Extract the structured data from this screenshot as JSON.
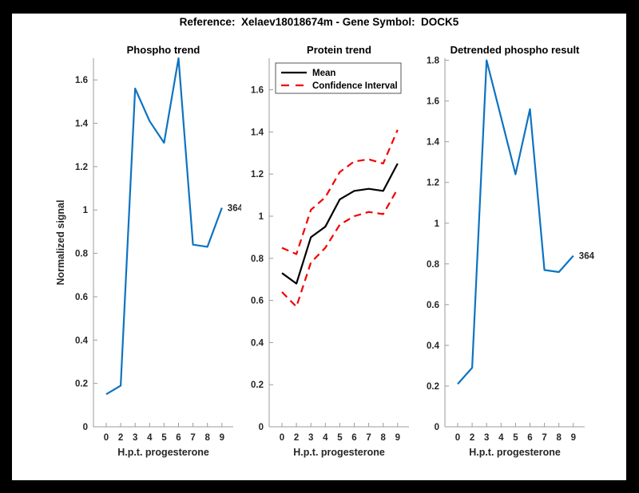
{
  "figure": {
    "title": "Reference:  Xelaev18018674m - Gene Symbol:  DOCK5",
    "background_color": "#000000",
    "canvas_color": "#ffffff",
    "axis_color": "#9b9b9b",
    "text_color": "#262626"
  },
  "chart_data": [
    {
      "type": "line",
      "title": "Phospho trend",
      "xlabel": "H.p.t. progesterone",
      "ylabel": "Normalized signal",
      "x_tick_labels": [
        "0",
        "2",
        "3",
        "4",
        "5",
        "6",
        "7",
        "8",
        "9"
      ],
      "y_tick_labels": [
        "0",
        "0.2",
        "0.4",
        "0.6",
        "0.8",
        "1",
        "1.2",
        "1.4",
        "1.6"
      ],
      "ylim": [
        0,
        1.7
      ],
      "grid": false,
      "series": [
        {
          "name": "phospho-signal",
          "color": "#0d73c2",
          "dash": false,
          "values": [
            0.15,
            0.19,
            1.56,
            1.41,
            1.31,
            1.7,
            0.84,
            0.83,
            1.01
          ]
        }
      ],
      "annotation": "364"
    },
    {
      "type": "line",
      "title": "Protein trend",
      "xlabel": "H.p.t. progesterone",
      "ylabel": "",
      "x_tick_labels": [
        "0",
        "2",
        "3",
        "4",
        "5",
        "6",
        "7",
        "8",
        "9"
      ],
      "y_tick_labels": [
        "0",
        "0.2",
        "0.4",
        "0.6",
        "0.8",
        "1",
        "1.2",
        "1.4",
        "1.6"
      ],
      "ylim": [
        0,
        1.75
      ],
      "grid": false,
      "legend": {
        "position": "top-left",
        "entries": [
          {
            "label": "Mean",
            "color": "#000000",
            "dash": false
          },
          {
            "label": "Confidence Interval",
            "color": "#f20000",
            "dash": true
          }
        ]
      },
      "series": [
        {
          "name": "mean",
          "color": "#000000",
          "dash": false,
          "values": [
            0.73,
            0.68,
            0.9,
            0.95,
            1.08,
            1.12,
            1.13,
            1.12,
            1.25
          ]
        },
        {
          "name": "ci-upper",
          "color": "#f20000",
          "dash": true,
          "values": [
            0.85,
            0.82,
            1.03,
            1.09,
            1.21,
            1.26,
            1.27,
            1.25,
            1.41
          ]
        },
        {
          "name": "ci-lower",
          "color": "#f20000",
          "dash": true,
          "values": [
            0.64,
            0.57,
            0.78,
            0.85,
            0.96,
            1.0,
            1.02,
            1.01,
            1.13
          ]
        }
      ],
      "annotation": ""
    },
    {
      "type": "line",
      "title": "Detrended phospho result",
      "xlabel": "H.p.t. progesterone",
      "ylabel": "",
      "x_tick_labels": [
        "0",
        "2",
        "3",
        "4",
        "5",
        "6",
        "7",
        "8",
        "9"
      ],
      "y_tick_labels": [
        "0",
        "0.2",
        "0.4",
        "0.6",
        "0.8",
        "1",
        "1.2",
        "1.4",
        "1.6",
        "1.8"
      ],
      "ylim": [
        0,
        1.81
      ],
      "grid": false,
      "series": [
        {
          "name": "detrended-phospho",
          "color": "#0d73c2",
          "dash": false,
          "values": [
            0.21,
            0.29,
            1.8,
            1.52,
            1.24,
            1.56,
            0.77,
            0.76,
            0.84
          ]
        }
      ],
      "annotation": "364"
    }
  ]
}
